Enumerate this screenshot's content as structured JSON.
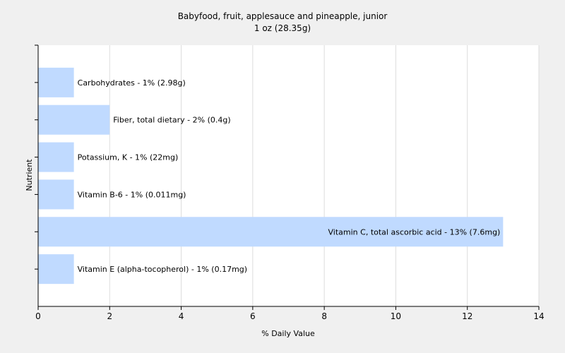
{
  "chart_data": {
    "type": "bar",
    "orientation": "horizontal",
    "title": "Babyfood, fruit, applesauce and pineapple, junior",
    "subtitle": "1 oz (28.35g)",
    "xlabel": "% Daily Value",
    "ylabel": "Nutrient",
    "xlim": [
      0,
      14
    ],
    "xticks": [
      0,
      2,
      4,
      6,
      8,
      10,
      12,
      14
    ],
    "grid": true,
    "categories": [
      "Carbohydrates",
      "Fiber, total dietary",
      "Potassium, K",
      "Vitamin B-6",
      "Vitamin C, total ascorbic acid",
      "Vitamin E (alpha-tocopherol)"
    ],
    "values": [
      1,
      2,
      1,
      1,
      13,
      1
    ],
    "labels": [
      "Carbohydrates - 1% (2.98g)",
      "Fiber, total dietary - 2% (0.4g)",
      "Potassium, K - 1% (22mg)",
      "Vitamin B-6 - 1% (0.011mg)",
      "Vitamin C, total ascorbic acid - 13% (7.6mg)",
      "Vitamin E (alpha-tocopherol) - 1% (0.17mg)"
    ],
    "colors": {
      "bar": "#c0daff",
      "grid": "#dddddd",
      "plot_bg": "#ffffff",
      "axis": "#000000"
    }
  }
}
